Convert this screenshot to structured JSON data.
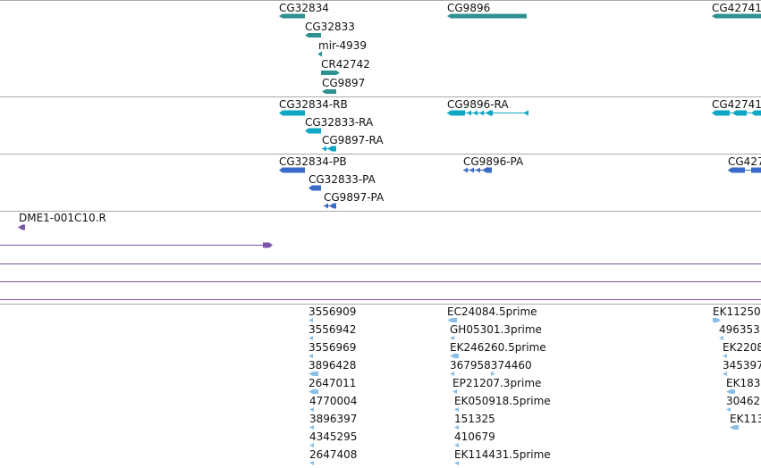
{
  "colors": {
    "gene": "#2e9191",
    "transcript": "#0fa7c5",
    "protein": "#3b6bc8",
    "clone": "#7a55a6",
    "est": "#8dbfe6",
    "separator": "#aaaaaa",
    "label": "#111111"
  },
  "tracks": {
    "genes": {
      "items": [
        {
          "label": "CG32834",
          "strand": "-",
          "icon": "gene-bar-icon"
        },
        {
          "label": "CG32833",
          "strand": "-",
          "icon": "gene-bar-icon"
        },
        {
          "label": "mir-4939",
          "strand": "-",
          "icon": "gene-bar-icon"
        },
        {
          "label": "CR42742",
          "strand": "+",
          "icon": "gene-bar-icon"
        },
        {
          "label": "CG9897",
          "strand": "-",
          "icon": "gene-bar-icon"
        },
        {
          "label": "CG9896",
          "strand": "-",
          "icon": "gene-bar-icon"
        },
        {
          "label": "CG42741",
          "strand": "-",
          "icon": "gene-bar-icon"
        }
      ]
    },
    "transcripts": {
      "items": [
        {
          "label": "CG32834-RB",
          "strand": "-"
        },
        {
          "label": "CG32833-RA",
          "strand": "-"
        },
        {
          "label": "CG9897-RA",
          "strand": "-"
        },
        {
          "label": "CG9896-RA",
          "strand": "-"
        },
        {
          "label": "CG42741",
          "strand": "-"
        }
      ]
    },
    "proteins": {
      "items": [
        {
          "label": "CG32834-PB",
          "strand": "-"
        },
        {
          "label": "CG32833-PA",
          "strand": "-"
        },
        {
          "label": "CG9897-PA",
          "strand": "-"
        },
        {
          "label": "CG9896-PA",
          "strand": "-"
        },
        {
          "label": "CG427",
          "strand": "-"
        }
      ]
    },
    "clones": {
      "items": [
        {
          "label": "DME1-001C10.R",
          "strand": "-"
        }
      ]
    },
    "ests": {
      "col1": [
        "3556909",
        "3556942",
        "3556969",
        "3896428",
        "2647011",
        "4770004",
        "3896397",
        "4345295",
        "2647408"
      ],
      "col2": [
        "EC24084.5prime",
        "GH05301.3prime",
        "EK246260.5prime",
        "367958374460",
        "EP21207.3prime",
        "EK050918.5prime",
        "151325",
        "410679",
        "EK114431.5prime"
      ],
      "col3": [
        "EK11250",
        "496353",
        "EK2208",
        "345397",
        "EK183",
        "30462",
        "EK113"
      ]
    }
  }
}
